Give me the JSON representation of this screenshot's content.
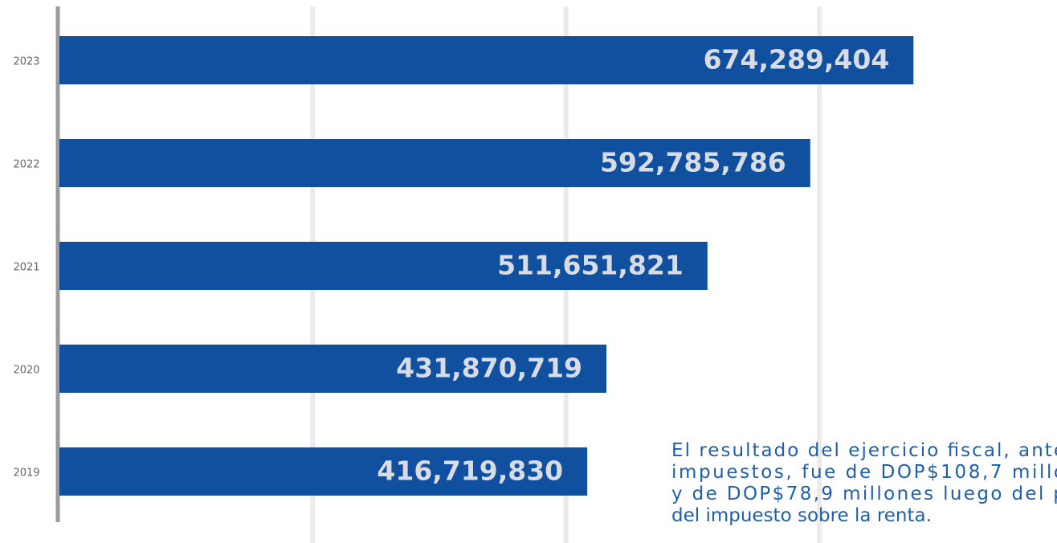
{
  "chart_data": {
    "type": "barh",
    "categories": [
      "2023",
      "2022",
      "2021",
      "2020",
      "2019"
    ],
    "values": [
      674289404,
      592785786,
      511651821,
      431870719,
      416719830
    ],
    "value_labels": [
      "674,289,404",
      "592,785,786",
      "511,651,821",
      "431,870,719",
      "416,719,830"
    ],
    "color": "#10509f",
    "xlim": [
      0,
      780000000
    ],
    "xticks": [
      0,
      200000000,
      400000000,
      600000000
    ],
    "grid": true,
    "annotation": [
      "El resultado del ejercicio fiscal, ante",
      "impuestos, fue de DOP$108,7 millo",
      "y de DOP$78,9 millones luego del p",
      "del impuesto sobre la renta."
    ]
  }
}
